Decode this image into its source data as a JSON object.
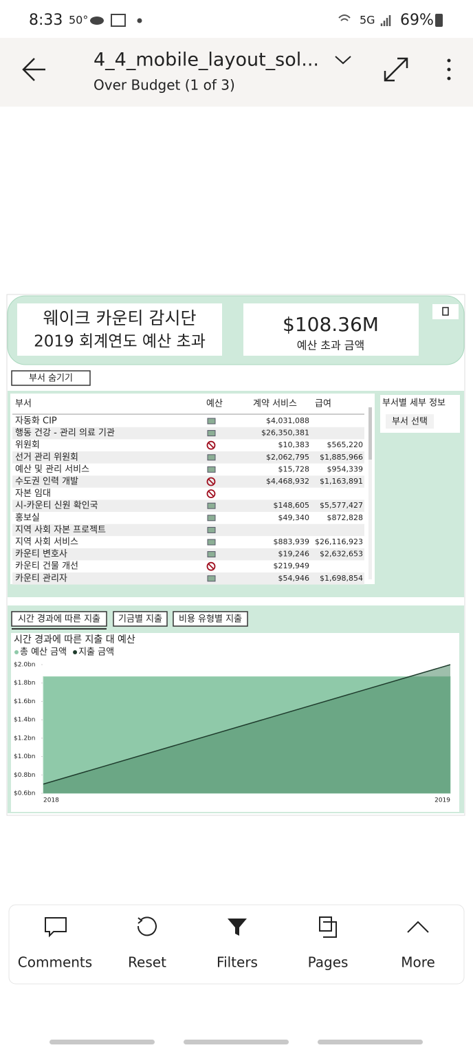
{
  "status_bar": {
    "time": "8:33",
    "temp": "50°",
    "network": "5G",
    "battery": "69%"
  },
  "header": {
    "title": "4_4_mobile_layout_sol...",
    "subtitle": "Over Budget (1 of 3)"
  },
  "report": {
    "title_lines": [
      "웨이크 카운티 감시단",
      "2019 회계연도 예산 초과"
    ],
    "kpi": {
      "value": "$108.36M",
      "label": "예산 초과 금액"
    },
    "toggle_button": "부서 숨기기",
    "table": {
      "columns": [
        "부서",
        "예산",
        "계약 서비스",
        "급여"
      ],
      "rows": [
        [
          "자동화 CIP",
          null,
          "$4,031,088",
          null
        ],
        [
          "행동 건강 - 관리 의료 기관",
          null,
          "$26,350,381",
          null
        ],
        [
          "위원회",
          null,
          "$10,383",
          "$565,220"
        ],
        [
          "선거 관리 위원회",
          null,
          "$2,062,795",
          "$1,885,966"
        ],
        [
          "예산 및 관리 서비스",
          null,
          "$15,728",
          "$954,339"
        ],
        [
          "수도권 인력 개발",
          null,
          "$4,468,932",
          "$1,163,891"
        ],
        [
          "자본 임대",
          null,
          null,
          null
        ],
        [
          "시-카운티 신원 확인국",
          null,
          "$148,605",
          "$5,577,427"
        ],
        [
          "홍보실",
          null,
          "$49,340",
          "$872,828"
        ],
        [
          "지역 사회 자본 프로젝트",
          null,
          null,
          null
        ],
        [
          "지역 사회 서비스",
          null,
          "$883,939",
          "$26,116,923"
        ],
        [
          "카운티 변호사",
          null,
          "$19,246",
          "$2,632,653"
        ],
        [
          "카운티 건물 개선",
          null,
          "$219,949",
          null
        ],
        [
          "카운티 관리자",
          null,
          "$54,946",
          "$1,698,854"
        ]
      ]
    },
    "side_panel": {
      "title": "부서별 세부 정보",
      "button": "부서 선택"
    },
    "tabs": [
      "시간 경과에 따른 지출",
      "기금별 지출",
      "비용 유형별 지출"
    ],
    "chart": {
      "type": "area",
      "title": "시간 경과에 따른 지출 대 예산",
      "categories": [
        "2018",
        "2019"
      ],
      "series": [
        {
          "name": "총 예산 금액",
          "color": "#8fc9a9",
          "values": [
            1.87,
            1.87
          ]
        },
        {
          "name": "지출 금액",
          "color": "#1e3b2c",
          "values": [
            0.7,
            2.0
          ]
        }
      ],
      "ylim": [
        0.6,
        2.0
      ],
      "yticks": [
        {
          "value": 0.6,
          "label": "$0.6bn"
        },
        {
          "value": 0.8,
          "label": "$0.8bn"
        },
        {
          "value": 1.0,
          "label": "$1.0bn"
        },
        {
          "value": 1.2,
          "label": "$1.2bn"
        },
        {
          "value": 1.4,
          "label": "$1.4bn"
        },
        {
          "value": 1.6,
          "label": "$1.6bn"
        },
        {
          "value": 1.8,
          "label": "$1.8bn"
        },
        {
          "value": 2.0,
          "label": "$2.0bn"
        }
      ]
    }
  },
  "toolbar": [
    "Comments",
    "Reset",
    "Filters",
    "Pages",
    "More"
  ]
}
